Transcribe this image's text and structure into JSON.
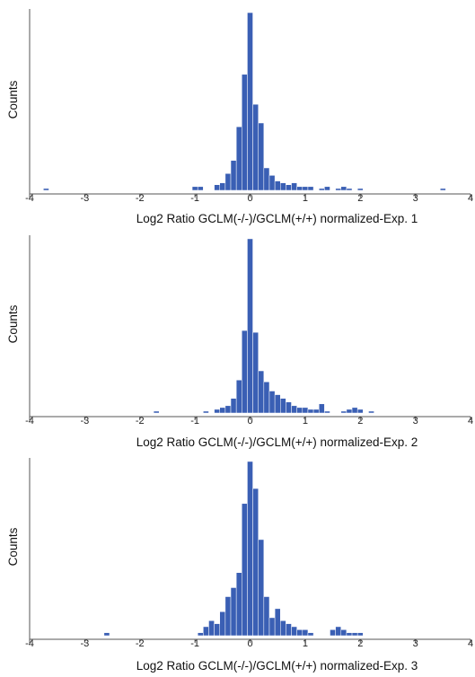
{
  "colors": {
    "bar_fill": "#3a5fb4",
    "bar_edge": "#ffffff",
    "axis": "#555555"
  },
  "chart_data": [
    {
      "type": "bar",
      "xlabel": "Log2 Ratio GCLM(-/-)/GCLM(+/+) normalized-Exp. 1",
      "ylabel": "Counts",
      "xlim": [
        -4,
        4
      ],
      "xticks": [
        "-4",
        "-3",
        "-2",
        "-1",
        "0",
        "1",
        "2",
        "3",
        "4"
      ],
      "bin_width": 0.1,
      "grid": false,
      "bins": [
        {
          "x": -3.7,
          "y": 1
        },
        {
          "x": -1.0,
          "y": 2
        },
        {
          "x": -0.9,
          "y": 2
        },
        {
          "x": -0.6,
          "y": 3
        },
        {
          "x": -0.5,
          "y": 4
        },
        {
          "x": -0.4,
          "y": 9
        },
        {
          "x": -0.3,
          "y": 16
        },
        {
          "x": -0.2,
          "y": 34
        },
        {
          "x": -0.1,
          "y": 62
        },
        {
          "x": 0.0,
          "y": 95
        },
        {
          "x": 0.1,
          "y": 46
        },
        {
          "x": 0.2,
          "y": 36
        },
        {
          "x": 0.3,
          "y": 12
        },
        {
          "x": 0.4,
          "y": 8
        },
        {
          "x": 0.5,
          "y": 5
        },
        {
          "x": 0.6,
          "y": 4
        },
        {
          "x": 0.7,
          "y": 3
        },
        {
          "x": 0.8,
          "y": 4
        },
        {
          "x": 0.9,
          "y": 2
        },
        {
          "x": 1.0,
          "y": 2
        },
        {
          "x": 1.1,
          "y": 2
        },
        {
          "x": 1.3,
          "y": 1
        },
        {
          "x": 1.4,
          "y": 2
        },
        {
          "x": 1.6,
          "y": 1
        },
        {
          "x": 1.7,
          "y": 2
        },
        {
          "x": 1.8,
          "y": 1
        },
        {
          "x": 2.0,
          "y": 1
        },
        {
          "x": 3.5,
          "y": 1
        }
      ]
    },
    {
      "type": "bar",
      "xlabel": "Log2 Ratio GCLM(-/-)/GCLM(+/+) normalized-Exp. 2",
      "ylabel": "Counts",
      "xlim": [
        -4,
        4
      ],
      "xticks": [
        "-4",
        "-3",
        "-2",
        "-1",
        "0",
        "1",
        "2",
        "3",
        "4"
      ],
      "bin_width": 0.1,
      "grid": false,
      "bins": [
        {
          "x": -1.7,
          "y": 1
        },
        {
          "x": -0.8,
          "y": 1
        },
        {
          "x": -0.6,
          "y": 2
        },
        {
          "x": -0.5,
          "y": 3
        },
        {
          "x": -0.4,
          "y": 4
        },
        {
          "x": -0.3,
          "y": 8
        },
        {
          "x": -0.2,
          "y": 18
        },
        {
          "x": -0.1,
          "y": 45
        },
        {
          "x": 0.0,
          "y": 95
        },
        {
          "x": 0.1,
          "y": 44
        },
        {
          "x": 0.2,
          "y": 23
        },
        {
          "x": 0.3,
          "y": 17
        },
        {
          "x": 0.4,
          "y": 12
        },
        {
          "x": 0.5,
          "y": 10
        },
        {
          "x": 0.6,
          "y": 8
        },
        {
          "x": 0.7,
          "y": 6
        },
        {
          "x": 0.8,
          "y": 4
        },
        {
          "x": 0.9,
          "y": 3
        },
        {
          "x": 1.0,
          "y": 3
        },
        {
          "x": 1.1,
          "y": 2
        },
        {
          "x": 1.2,
          "y": 2
        },
        {
          "x": 1.3,
          "y": 5
        },
        {
          "x": 1.4,
          "y": 1
        },
        {
          "x": 1.7,
          "y": 1
        },
        {
          "x": 1.8,
          "y": 2
        },
        {
          "x": 1.9,
          "y": 3
        },
        {
          "x": 2.0,
          "y": 2
        },
        {
          "x": 2.2,
          "y": 1
        }
      ]
    },
    {
      "type": "bar",
      "xlabel": "Log2 Ratio GCLM(-/-)/GCLM(+/+) normalized-Exp. 3",
      "ylabel": "Counts",
      "xlim": [
        -4,
        4
      ],
      "xticks": [
        "-4",
        "-3",
        "-2",
        "-1",
        "0",
        "1",
        "2",
        "3",
        "4"
      ],
      "bin_width": 0.1,
      "grid": false,
      "bins": [
        {
          "x": -2.6,
          "y": 1
        },
        {
          "x": -0.9,
          "y": 1
        },
        {
          "x": -0.8,
          "y": 3
        },
        {
          "x": -0.7,
          "y": 5
        },
        {
          "x": -0.6,
          "y": 4
        },
        {
          "x": -0.5,
          "y": 8
        },
        {
          "x": -0.4,
          "y": 13
        },
        {
          "x": -0.3,
          "y": 16
        },
        {
          "x": -0.2,
          "y": 21
        },
        {
          "x": -0.1,
          "y": 44
        },
        {
          "x": 0.0,
          "y": 58
        },
        {
          "x": 0.1,
          "y": 49
        },
        {
          "x": 0.2,
          "y": 32
        },
        {
          "x": 0.3,
          "y": 13
        },
        {
          "x": 0.4,
          "y": 6
        },
        {
          "x": 0.5,
          "y": 9
        },
        {
          "x": 0.6,
          "y": 5
        },
        {
          "x": 0.7,
          "y": 4
        },
        {
          "x": 0.8,
          "y": 3
        },
        {
          "x": 0.9,
          "y": 2
        },
        {
          "x": 1.0,
          "y": 2
        },
        {
          "x": 1.1,
          "y": 1
        },
        {
          "x": 1.5,
          "y": 2
        },
        {
          "x": 1.6,
          "y": 3
        },
        {
          "x": 1.7,
          "y": 2
        },
        {
          "x": 1.8,
          "y": 1
        },
        {
          "x": 1.9,
          "y": 1
        },
        {
          "x": 2.0,
          "y": 1
        }
      ]
    }
  ]
}
